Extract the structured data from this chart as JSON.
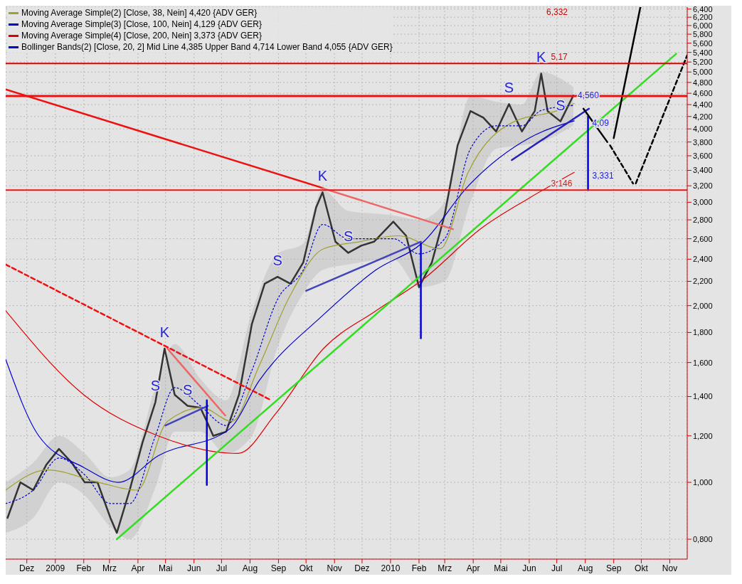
{
  "chart_data": {
    "type": "line",
    "log": "y",
    "grid": true,
    "legend": "top left",
    "xlim": [
      "2008-11-08",
      "2010-11-20"
    ],
    "ylim": [
      0.74,
      6.45
    ],
    "xticks": [
      {
        "value": "2008-12-01",
        "label": "Dez"
      },
      {
        "value": "2009-01-01",
        "label": "2009"
      },
      {
        "value": "2009-02-01",
        "label": "Feb"
      },
      {
        "value": "2009-03-01",
        "label": "Mrz"
      },
      {
        "value": "2009-04-01",
        "label": "Apr"
      },
      {
        "value": "2009-05-01",
        "label": "Mai"
      },
      {
        "value": "2009-06-01",
        "label": "Jun"
      },
      {
        "value": "2009-07-01",
        "label": "Jul"
      },
      {
        "value": "2009-08-01",
        "label": "Aug"
      },
      {
        "value": "2009-09-01",
        "label": "Sep"
      },
      {
        "value": "2009-10-01",
        "label": "Okt"
      },
      {
        "value": "2009-11-01",
        "label": "Nov"
      },
      {
        "value": "2009-12-01",
        "label": "Dez"
      },
      {
        "value": "2010-01-01",
        "label": "2010"
      },
      {
        "value": "2010-02-01",
        "label": "Feb"
      },
      {
        "value": "2010-03-01",
        "label": "Mrz"
      },
      {
        "value": "2010-04-01",
        "label": "Apr"
      },
      {
        "value": "2010-05-01",
        "label": "Mai"
      },
      {
        "value": "2010-06-01",
        "label": "Jun"
      },
      {
        "value": "2010-07-01",
        "label": "Jul"
      },
      {
        "value": "2010-08-01",
        "label": "Aug"
      },
      {
        "value": "2010-09-01",
        "label": "Sep"
      },
      {
        "value": "2010-10-01",
        "label": "Okt"
      },
      {
        "value": "2010-11-01",
        "label": "Nov"
      }
    ],
    "yticks": [
      {
        "value": 0.8,
        "label": "0,800"
      },
      {
        "value": 1.0,
        "label": "1,000"
      },
      {
        "value": 1.2,
        "label": "1,200"
      },
      {
        "value": 1.4,
        "label": "1,400"
      },
      {
        "value": 1.6,
        "label": "1,600"
      },
      {
        "value": 1.8,
        "label": "1,800"
      },
      {
        "value": 2.0,
        "label": "2,000"
      },
      {
        "value": 2.2,
        "label": "2,200"
      },
      {
        "value": 2.4,
        "label": "2,400"
      },
      {
        "value": 2.6,
        "label": "2,600"
      },
      {
        "value": 2.8,
        "label": "2,800"
      },
      {
        "value": 3.0,
        "label": "3,000"
      },
      {
        "value": 3.2,
        "label": "3,200"
      },
      {
        "value": 3.4,
        "label": "3,400"
      },
      {
        "value": 3.6,
        "label": "3,600"
      },
      {
        "value": 3.8,
        "label": "3,800"
      },
      {
        "value": 4.0,
        "label": "4,000"
      },
      {
        "value": 4.2,
        "label": "4,200"
      },
      {
        "value": 4.4,
        "label": "4,400"
      },
      {
        "value": 4.6,
        "label": "4,600"
      },
      {
        "value": 4.8,
        "label": "4,800"
      },
      {
        "value": 5.0,
        "label": "5,000"
      },
      {
        "value": 5.2,
        "label": "5,200"
      },
      {
        "value": 5.4,
        "label": "5,400"
      },
      {
        "value": 5.6,
        "label": "5,600"
      },
      {
        "value": 5.8,
        "label": "5,800"
      },
      {
        "value": 6.0,
        "label": "6,000"
      },
      {
        "value": 6.2,
        "label": "6,200"
      },
      {
        "value": 6.4,
        "label": "6,400"
      }
    ],
    "series": [
      {
        "color": "#333333",
        "x": [
          "2008-11-10",
          "2008-11-24",
          "2008-12-08",
          "2008-12-22",
          "2009-01-05",
          "2009-01-19",
          "2009-02-02",
          "2009-02-16",
          "2009-03-02",
          "2009-03-09",
          "2009-03-23",
          "2009-04-06",
          "2009-04-20",
          "2009-04-30",
          "2009-05-11",
          "2009-05-25",
          "2009-06-08",
          "2009-06-15",
          "2009-06-22",
          "2009-07-06",
          "2009-07-20",
          "2009-08-03",
          "2009-08-17",
          "2009-08-31",
          "2009-09-14",
          "2009-09-28",
          "2009-10-12",
          "2009-10-19",
          "2009-11-02",
          "2009-11-16",
          "2009-11-30",
          "2009-12-14",
          "2010-01-04",
          "2010-01-18",
          "2010-02-01",
          "2010-02-15",
          "2010-03-01",
          "2010-03-15",
          "2010-03-29",
          "2010-04-12",
          "2010-04-26",
          "2010-05-10",
          "2010-05-24",
          "2010-06-07",
          "2010-06-14",
          "2010-06-21",
          "2010-07-05",
          "2010-07-19"
        ],
        "values": [
          0.87,
          1.0,
          0.97,
          1.07,
          1.14,
          1.08,
          1.0,
          1.0,
          0.87,
          0.82,
          0.97,
          1.17,
          1.37,
          1.69,
          1.41,
          1.35,
          1.34,
          1.27,
          1.2,
          1.22,
          1.41,
          1.86,
          2.18,
          2.24,
          2.18,
          2.37,
          2.94,
          3.12,
          2.57,
          2.46,
          2.53,
          2.57,
          2.78,
          2.63,
          2.15,
          2.37,
          2.86,
          3.75,
          4.29,
          4.18,
          3.96,
          4.41,
          3.96,
          4.29,
          4.97,
          4.29,
          4.12,
          4.56
        ]
      },
      {
        "name": "Moving Average Simple(2) [Close, 38, Nein] 4,420 {ADV GER}",
        "color": "#a0a030",
        "x": [
          "2008-11-08",
          "2008-12-23",
          "2009-02-17",
          "2009-03-31",
          "2009-05-03",
          "2009-06-10",
          "2009-07-12",
          "2009-08-11",
          "2009-09-13",
          "2009-10-20",
          "2009-11-28",
          "2010-01-10",
          "2010-02-24",
          "2010-03-26",
          "2010-05-16",
          "2010-06-30",
          "2010-07-20"
        ],
        "values": [
          0.97,
          1.05,
          1.0,
          0.97,
          1.27,
          1.34,
          1.27,
          1.58,
          2.07,
          2.5,
          2.57,
          2.63,
          2.5,
          3.36,
          4.12,
          4.29,
          4.42
        ]
      },
      {
        "name": "Moving Average Simple(3) [Close, 100, Nein] 4,129 {ADV GER}",
        "color": "#0000cc",
        "x": [
          "2008-11-08",
          "2008-12-14",
          "2009-02-01",
          "2009-03-11",
          "2009-04-23",
          "2009-07-09",
          "2009-08-11",
          "2009-10-20",
          "2009-12-16",
          "2010-02-06",
          "2010-03-26",
          "2010-06-01",
          "2010-07-20"
        ],
        "values": [
          1.62,
          1.2,
          1.06,
          1.0,
          1.11,
          1.23,
          1.49,
          1.93,
          2.3,
          2.57,
          3.19,
          3.86,
          4.129
        ]
      },
      {
        "name": "Moving Average Simple(4) [Close, 200, Nein] 3,373 {ADV GER}",
        "color": "#dd0000",
        "x": [
          "2008-11-08",
          "2009-02-01",
          "2009-04-23",
          "2009-07-19",
          "2009-08-29",
          "2009-10-20",
          "2009-12-16",
          "2010-02-06",
          "2010-04-10",
          "2010-06-01",
          "2010-07-20"
        ],
        "values": [
          1.96,
          1.41,
          1.2,
          1.12,
          1.31,
          1.69,
          1.96,
          2.22,
          2.71,
          3.05,
          3.373
        ]
      },
      {
        "name": "Bollinger Bands(2) [Close, 20, 2] Mid Line 4,385 Upper Band 4,714 Lower Band 4,055 {ADV GER}",
        "color": "#0000cc",
        "line_style": "dotted",
        "x": [
          "2008-11-08",
          "2008-12-08",
          "2009-01-05",
          "2009-02-02",
          "2009-03-02",
          "2009-03-23",
          "2009-04-20",
          "2009-05-11",
          "2009-06-08",
          "2009-07-06",
          "2009-08-03",
          "2009-08-31",
          "2009-09-28",
          "2009-10-19",
          "2009-11-16",
          "2010-01-04",
          "2010-02-01",
          "2010-03-01",
          "2010-03-29",
          "2010-04-26",
          "2010-05-24",
          "2010-06-14",
          "2010-07-19"
        ],
        "values": [
          0.92,
          0.97,
          1.1,
          1.03,
          0.92,
          0.92,
          1.2,
          1.45,
          1.35,
          1.25,
          1.55,
          2.05,
          2.3,
          2.75,
          2.6,
          2.6,
          2.45,
          2.6,
          3.7,
          4.05,
          4.05,
          4.3,
          4.385
        ],
        "upper": [
          1.0,
          1.08,
          1.2,
          1.12,
          1.02,
          1.05,
          1.45,
          1.72,
          1.5,
          1.38,
          1.95,
          2.45,
          2.55,
          3.15,
          2.9,
          2.85,
          2.8,
          3.0,
          4.55,
          4.45,
          4.4,
          5.0,
          4.714
        ],
        "lower": [
          0.82,
          0.87,
          1.0,
          0.95,
          0.84,
          0.8,
          0.98,
          1.22,
          1.22,
          1.12,
          1.2,
          1.7,
          2.1,
          2.3,
          2.35,
          2.4,
          2.15,
          2.2,
          3.0,
          3.7,
          3.75,
          3.8,
          4.055
        ]
      },
      {
        "color": "#33dd22",
        "x": [
          "2009-03-09",
          "2010-11-08"
        ],
        "values": [
          0.8,
          5.37
        ]
      },
      {
        "color": "#ee1111",
        "x": [
          "2008-11-08",
          "2009-10-20"
        ],
        "values": [
          4.67,
          3.17
        ]
      },
      {
        "color": "#ee1111",
        "line_style": "dashed",
        "x": [
          "2008-11-08",
          "2009-08-24"
        ],
        "values": [
          2.35,
          1.38
        ]
      },
      {
        "color": "#ee6666",
        "x": [
          "2009-05-03",
          "2009-07-05"
        ],
        "values": [
          1.69,
          1.3
        ]
      },
      {
        "color": "#ee6666",
        "x": [
          "2009-10-19",
          "2010-03-10"
        ],
        "values": [
          3.17,
          2.7
        ]
      },
      {
        "color": "#4444bb",
        "x": [
          "2009-05-01",
          "2009-06-16"
        ],
        "values": [
          1.25,
          1.35
        ]
      },
      {
        "color": "#4444bb",
        "x": [
          "2009-10-01",
          "2010-02-03"
        ],
        "values": [
          2.12,
          2.57
        ]
      },
      {
        "color": "#2222bb",
        "x": [
          "2010-05-13",
          "2010-08-05"
        ],
        "values": [
          3.54,
          4.33
        ]
      },
      {
        "color": "#0000dd",
        "x": [
          "2009-06-15",
          "2009-06-15"
        ],
        "values": [
          1.38,
          0.99
        ]
      },
      {
        "color": "#0000dd",
        "x": [
          "2010-02-03",
          "2010-02-03"
        ],
        "values": [
          2.55,
          1.76
        ]
      },
      {
        "color": "#0000dd",
        "x": [
          "2010-08-04",
          "2010-08-04"
        ],
        "values": [
          4.2,
          3.146
        ]
      },
      {
        "color": "#000000",
        "x": [
          "2010-07-30",
          "2010-08-25"
        ],
        "values": [
          4.33,
          3.8
        ]
      },
      {
        "color": "#000000",
        "x": [
          "2010-09-01",
          "2010-09-30"
        ],
        "values": [
          3.86,
          6.45
        ]
      },
      {
        "color": "#000000",
        "line_style": "dashed",
        "x": [
          "2010-08-28",
          "2010-09-22"
        ],
        "values": [
          3.75,
          3.23
        ]
      },
      {
        "color": "#000000",
        "line_style": "dashed",
        "x": [
          "2010-09-25",
          "2010-11-20"
        ],
        "values": [
          3.23,
          5.34
        ]
      }
    ],
    "ref_lines": [
      {
        "axis": "y",
        "value": 5.17,
        "label": "5,17",
        "color": "#dd0000"
      },
      {
        "axis": "y",
        "value": 4.55,
        "color": "#ee1111"
      },
      {
        "axis": "y",
        "value": 3.146,
        "label": "3,146",
        "color": "#ee1111"
      }
    ],
    "annotations": [
      {
        "text": "K",
        "x": "2009-04-30",
        "y": 1.69
      },
      {
        "text": "S",
        "x": "2009-04-20",
        "y": 1.37
      },
      {
        "text": "S",
        "x": "2009-05-25",
        "y": 1.35
      },
      {
        "text": "S",
        "x": "2009-08-31",
        "y": 2.24
      },
      {
        "text": "K",
        "x": "2009-10-19",
        "y": 3.12
      },
      {
        "text": "S",
        "x": "2009-11-16",
        "y": 2.46
      },
      {
        "text": "S",
        "x": "2010-05-10",
        "y": 4.41
      },
      {
        "text": "K",
        "x": "2010-06-14",
        "y": 4.97
      },
      {
        "text": "S",
        "x": "2010-07-05",
        "y": 4.12
      },
      {
        "text": "4,09",
        "x": "2010-08-04",
        "y": 4.09
      },
      {
        "text": "3,331",
        "x": "2010-08-04",
        "y": 3.331
      },
      "6,332",
      {
        "text": "4,560",
        "x": "2010-07-19",
        "y": 4.56
      }
    ]
  }
}
